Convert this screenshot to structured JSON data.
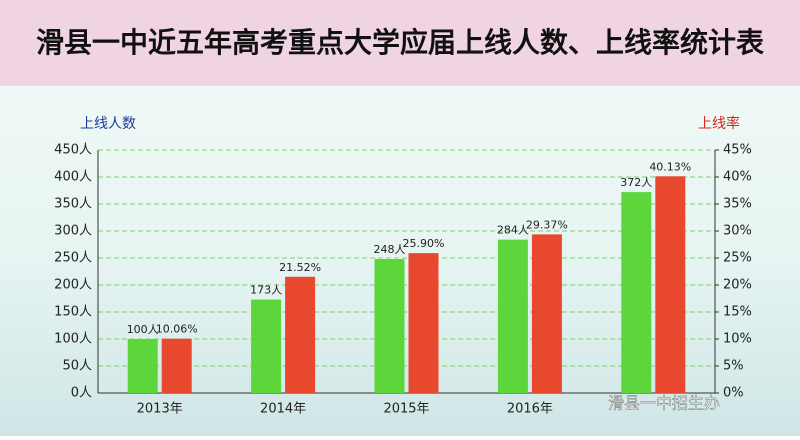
{
  "chart_data": {
    "type": "bar",
    "title": "滑县一中近五年高考重点大学应届上线人数、上线率统计表",
    "categories": [
      "2013年",
      "2014年",
      "2015年",
      "2016年",
      null
    ],
    "series": [
      {
        "name": "上线人数",
        "color": "#5cd63a",
        "axis": "y",
        "values": [
          100,
          173,
          248,
          284,
          372
        ],
        "value_labels": [
          "100人",
          "173人",
          "248人",
          "284人",
          "372人"
        ]
      },
      {
        "name": "上线率",
        "color": "#e8482e",
        "axis": "y2",
        "values": [
          10.06,
          21.52,
          25.9,
          29.37,
          40.13
        ],
        "value_labels": [
          "10.06%",
          "21.52%",
          "25.90%",
          "29.37%",
          "40.13%"
        ]
      }
    ],
    "ylim": [
      0,
      450
    ],
    "yticks": [
      {
        "value": 0,
        "label": "0人"
      },
      {
        "value": 50,
        "label": "50人"
      },
      {
        "value": 100,
        "label": "100人"
      },
      {
        "value": 150,
        "label": "150人"
      },
      {
        "value": 200,
        "label": "200人"
      },
      {
        "value": 250,
        "label": "250人"
      },
      {
        "value": 300,
        "label": "300人"
      },
      {
        "value": 350,
        "label": "350人"
      },
      {
        "value": 400,
        "label": "400人"
      },
      {
        "value": 450,
        "label": "450人"
      }
    ],
    "y2lim": [
      0,
      45
    ],
    "y2ticks": [
      {
        "value": 0,
        "label": "0%"
      },
      {
        "value": 5,
        "label": "5%"
      },
      {
        "value": 10,
        "label": "10%"
      },
      {
        "value": 15,
        "label": "15%"
      },
      {
        "value": 20,
        "label": "20%"
      },
      {
        "value": 25,
        "label": "25%"
      },
      {
        "value": 30,
        "label": "30%"
      },
      {
        "value": 35,
        "label": "35%"
      },
      {
        "value": 40,
        "label": "40%"
      },
      {
        "value": 45,
        "label": "45%"
      }
    ],
    "grid": true,
    "watermark": "滑县一中招生办"
  }
}
